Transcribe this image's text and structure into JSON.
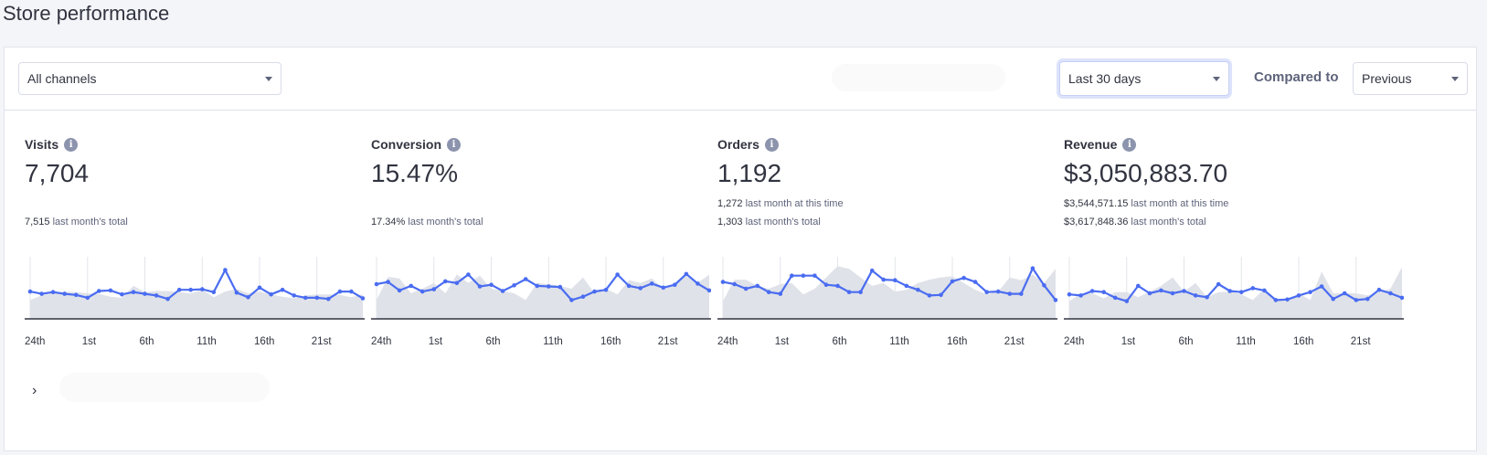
{
  "page": {
    "title": "Store performance"
  },
  "toolbar": {
    "channel_select": "All channels",
    "period_select": "Last 30 days",
    "compared_to_label": "Compared to",
    "compare_select": "Previous"
  },
  "metrics": [
    {
      "label": "Visits",
      "value": "7,704",
      "subs": [
        {
          "num": "7,515",
          "text": " last month's total"
        }
      ]
    },
    {
      "label": "Conversion",
      "value": "15.47%",
      "subs": [
        {
          "num": "17.34%",
          "text": " last month's total"
        }
      ]
    },
    {
      "label": "Orders",
      "value": "1,192",
      "subs": [
        {
          "num": "1,272",
          "text": " last month at this time"
        },
        {
          "num": "1,303",
          "text": " last month's total"
        }
      ]
    },
    {
      "label": "Revenue",
      "value": "$3,050,883.70",
      "subs": [
        {
          "num": "$3,544,571.15",
          "text": " last month at this time"
        },
        {
          "num": "$3,617,848.36",
          "text": " last month's total"
        }
      ]
    }
  ],
  "colors": {
    "line": "#4a6cf1",
    "area": "#dfe2e8",
    "axis": "#313440",
    "grid": "#e3e5ea"
  },
  "chart_data": [
    {
      "type": "line",
      "title": "Visits",
      "x_ticks": [
        "24th",
        "1st",
        "6th",
        "11th",
        "16th",
        "21st"
      ],
      "series": [
        {
          "name": "current",
          "values": [
            45,
            41,
            44,
            41,
            39,
            34,
            46,
            47,
            40,
            44,
            41,
            38,
            32,
            48,
            48,
            49,
            44,
            83,
            43,
            35,
            52,
            40,
            48,
            38,
            34,
            34,
            32,
            45,
            45,
            33
          ]
        },
        {
          "name": "previous",
          "values": [
            30,
            38,
            42,
            45,
            44,
            42,
            41,
            36,
            34,
            55,
            44,
            46,
            46,
            44,
            42,
            48,
            35,
            45,
            50,
            42,
            45,
            40,
            36,
            33,
            38,
            40,
            40,
            39,
            35,
            40
          ]
        }
      ]
    },
    {
      "type": "line",
      "title": "Conversion",
      "x_ticks": [
        "24th",
        "1st",
        "6th",
        "11th",
        "16th",
        "21st"
      ],
      "series": [
        {
          "name": "current",
          "values": [
            58,
            62,
            47,
            55,
            45,
            49,
            63,
            60,
            75,
            54,
            57,
            46,
            56,
            67,
            55,
            54,
            53,
            30,
            36,
            45,
            48,
            75,
            55,
            51,
            59,
            52,
            57,
            76,
            59,
            47
          ]
        },
        {
          "name": "previous",
          "values": [
            30,
            71,
            68,
            42,
            50,
            60,
            42,
            75,
            60,
            73,
            50,
            46,
            42,
            30,
            60,
            58,
            55,
            50,
            70,
            42,
            50,
            40,
            65,
            60,
            68,
            50,
            60,
            72,
            60,
            75
          ]
        }
      ]
    },
    {
      "type": "line",
      "title": "Orders",
      "x_ticks": [
        "24th",
        "1st",
        "6th",
        "11th",
        "16th",
        "21st"
      ],
      "series": [
        {
          "name": "current",
          "values": [
            62,
            58,
            50,
            55,
            44,
            41,
            73,
            73,
            73,
            57,
            55,
            44,
            44,
            82,
            66,
            65,
            55,
            48,
            38,
            39,
            63,
            69,
            62,
            44,
            45,
            41,
            41,
            86,
            56,
            30
          ]
        },
        {
          "name": "previous",
          "values": [
            28,
            66,
            66,
            55,
            50,
            58,
            60,
            40,
            50,
            70,
            90,
            85,
            70,
            55,
            60,
            45,
            48,
            60,
            66,
            70,
            72,
            60,
            48,
            40,
            45,
            70,
            65,
            75,
            60,
            85
          ]
        }
      ]
    },
    {
      "type": "line",
      "title": "Revenue",
      "x_ticks": [
        "24th",
        "1st",
        "6th",
        "11th",
        "16th",
        "21st"
      ],
      "series": [
        {
          "name": "current",
          "values": [
            40,
            38,
            46,
            44,
            34,
            28,
            55,
            42,
            47,
            42,
            46,
            38,
            35,
            58,
            46,
            44,
            51,
            47,
            30,
            31,
            38,
            44,
            54,
            32,
            42,
            30,
            32,
            48,
            42,
            34
          ]
        },
        {
          "name": "previous",
          "values": [
            28,
            42,
            42,
            33,
            44,
            44,
            35,
            45,
            55,
            70,
            45,
            60,
            35,
            44,
            45,
            40,
            30,
            50,
            30,
            28,
            42,
            30,
            80,
            42,
            42,
            42,
            38,
            44,
            50,
            88
          ]
        }
      ]
    }
  ]
}
